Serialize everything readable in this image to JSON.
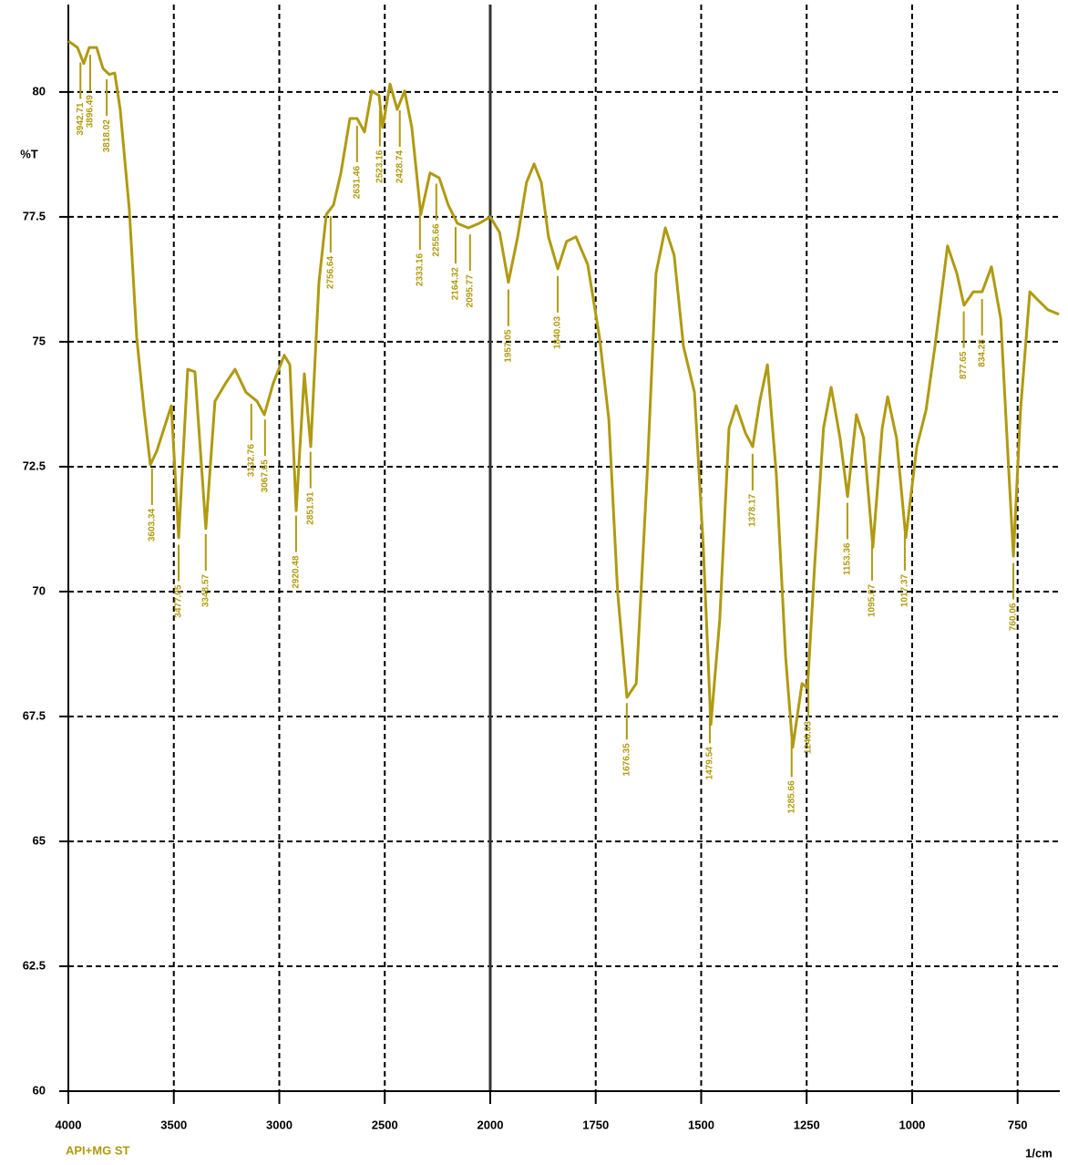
{
  "chart_data": {
    "type": "line",
    "y_label": "%T",
    "x_label": "1/cm",
    "caption": "API+MG ST",
    "xlim": [
      4000,
      650
    ],
    "x_scale_break": 2000,
    "ylim": [
      60,
      81.75
    ],
    "xticks": [
      4000,
      3500,
      3000,
      2500,
      2000,
      1750,
      1500,
      1250,
      1000,
      750
    ],
    "yticks": [
      60,
      62.5,
      65,
      67.5,
      70,
      72.5,
      75,
      77.5,
      80
    ],
    "grid": true,
    "series": [
      {
        "color": "#b09a10",
        "x": [
          4000,
          3957,
          3927,
          3901,
          3866,
          3836,
          3806,
          3780,
          3754,
          3711,
          3676,
          3641,
          3611,
          3581,
          3546,
          3512,
          3477,
          3434,
          3400,
          3348,
          3305,
          3253,
          3210,
          3158,
          3106,
          3071,
          3028,
          2976,
          2950,
          2920,
          2881,
          2851,
          2812,
          2777,
          2743,
          2708,
          2665,
          2631,
          2596,
          2562,
          2527,
          2510,
          2475,
          2441,
          2406,
          2372,
          2329,
          2285,
          2242,
          2199,
          2156,
          2104,
          2052,
          2000,
          1978,
          1957,
          1935,
          1914,
          1896,
          1879,
          1862,
          1840,
          1819,
          1797,
          1769,
          1741,
          1719,
          1698,
          1676,
          1654,
          1628,
          1607,
          1585,
          1564,
          1542,
          1516,
          1495,
          1477,
          1456,
          1434,
          1417,
          1395,
          1378,
          1361,
          1343,
          1322,
          1300,
          1283,
          1261,
          1248,
          1231,
          1210,
          1192,
          1171,
          1153,
          1132,
          1115,
          1093,
          1071,
          1058,
          1037,
          1015,
          989,
          967,
          946,
          916,
          894,
          877,
          855,
          834,
          812,
          790,
          773,
          760,
          743,
          721,
          700,
          678,
          652
        ],
        "values": [
          81.02,
          80.89,
          80.57,
          80.89,
          80.89,
          80.47,
          80.35,
          80.38,
          79.65,
          77.65,
          75.09,
          73.63,
          72.54,
          72.81,
          73.27,
          73.72,
          71.08,
          74.45,
          74.4,
          71.26,
          73.81,
          74.18,
          74.45,
          73.99,
          73.81,
          73.54,
          74.18,
          74.73,
          74.54,
          71.62,
          74.36,
          72.9,
          76.19,
          77.55,
          77.74,
          78.38,
          79.47,
          79.47,
          79.2,
          80.02,
          79.93,
          79.29,
          80.16,
          79.65,
          80.02,
          79.29,
          77.55,
          78.38,
          78.28,
          77.74,
          77.37,
          77.28,
          77.37,
          77.5,
          77.19,
          76.19,
          77.1,
          78.19,
          78.56,
          78.19,
          77.1,
          76.46,
          77.01,
          77.1,
          76.55,
          75.09,
          73.45,
          69.98,
          67.88,
          68.16,
          72.35,
          76.37,
          77.28,
          76.73,
          74.91,
          73.99,
          70.89,
          67.34,
          69.43,
          73.27,
          73.72,
          73.17,
          72.9,
          73.81,
          74.54,
          72.35,
          68.7,
          66.88,
          68.16,
          68.07,
          70.53,
          73.27,
          74.09,
          73.08,
          71.9,
          73.54,
          73.08,
          70.89,
          73.27,
          73.9,
          73.08,
          71.08,
          72.9,
          73.63,
          74.91,
          76.92,
          76.37,
          75.73,
          76,
          76,
          76.5,
          75.46,
          72.72,
          70.71,
          73.63,
          76,
          75.82,
          75.64,
          75.55
        ]
      }
    ],
    "peaks": [
      3942.71,
      3896.49,
      3818.02,
      3603.34,
      3477.05,
      3348.57,
      3132.76,
      3067.65,
      2920.48,
      2851.91,
      2756.64,
      2631.46,
      2523.16,
      2428.74,
      2333.16,
      2255.66,
      2164.32,
      2095.77,
      1957.05,
      1840.03,
      1676.35,
      1479.54,
      1378.17,
      1285.66,
      1246.03,
      1153.36,
      1095.07,
      1017.37,
      877.65,
      834.28,
      760.06
    ]
  }
}
